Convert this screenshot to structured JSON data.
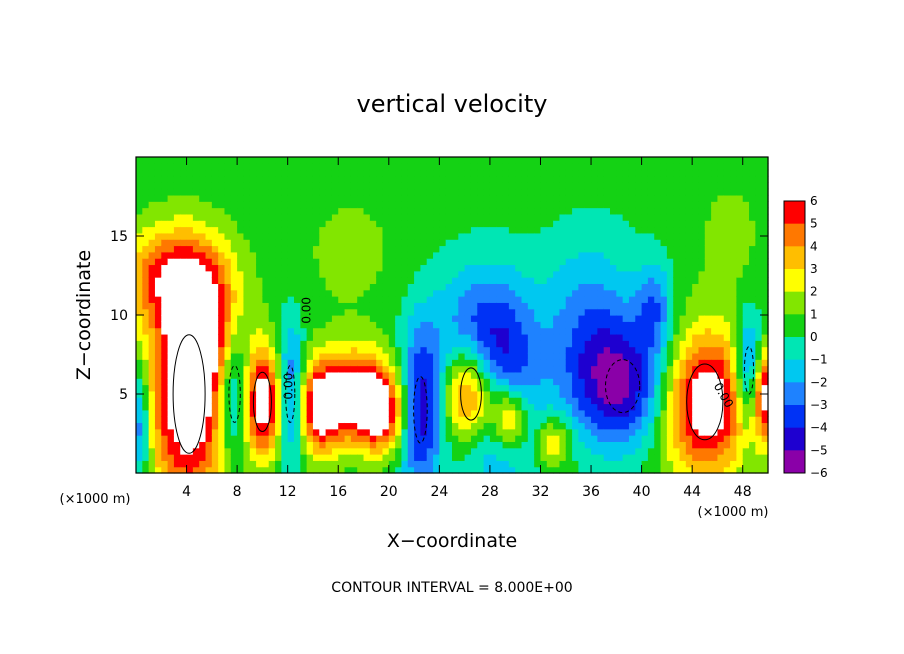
{
  "chart_data": {
    "type": "heatmap",
    "title": "vertical velocity",
    "xlabel": "X−coordinate",
    "ylabel": "Z−coordinate",
    "x_unit_left": "(×1000 m)",
    "x_unit_right": "(×1000 m)",
    "xlim": [
      0,
      50
    ],
    "ylim": [
      0,
      20
    ],
    "xticks": [
      4,
      8,
      12,
      16,
      20,
      24,
      28,
      32,
      36,
      40,
      44,
      48
    ],
    "yticks": [
      5,
      10,
      15
    ],
    "footer": "CONTOUR INTERVAL = 8.000E+00",
    "contour_labels": [
      "0.00",
      "0.00",
      "0.00"
    ],
    "colorbar": {
      "ticks": [
        6,
        5,
        4,
        3,
        2,
        1,
        0,
        -1,
        -2,
        -3,
        -4,
        -5,
        -6
      ],
      "tick_labels": [
        "6",
        "5",
        "4",
        "3",
        "2",
        "1",
        "0",
        "−1",
        "−2",
        "−3",
        "−4",
        "−5",
        "−6"
      ],
      "range": [
        -6,
        6
      ]
    },
    "features": [
      {
        "x": 4.2,
        "z": 5.0,
        "w": 7.5,
        "sx": 2.3,
        "sz": 5.0
      },
      {
        "x": 3.0,
        "z": 12.5,
        "w": 4.5,
        "sx": 3.0,
        "sz": 2.2
      },
      {
        "x": 5.5,
        "z": 9.0,
        "w": 3.5,
        "sx": 1.8,
        "sz": 2.5
      },
      {
        "x": 7.8,
        "z": 5.0,
        "w": -5.0,
        "sx": 1.0,
        "sz": 3.0
      },
      {
        "x": 10.0,
        "z": 4.5,
        "w": 7.0,
        "sx": 1.3,
        "sz": 2.5
      },
      {
        "x": 12.2,
        "z": 5.0,
        "w": -5.0,
        "sx": 0.8,
        "sz": 3.0
      },
      {
        "x": 14.5,
        "z": 4.0,
        "w": 5.5,
        "sx": 1.2,
        "sz": 2.0
      },
      {
        "x": 17.5,
        "z": 5.0,
        "w": 6.5,
        "sx": 2.3,
        "sz": 2.0
      },
      {
        "x": 19.5,
        "z": 3.5,
        "w": 4.0,
        "sx": 1.5,
        "sz": 1.7
      },
      {
        "x": 22.5,
        "z": 4.0,
        "w": -5.5,
        "sx": 1.2,
        "sz": 3.5
      },
      {
        "x": 26.5,
        "z": 5.0,
        "w": 7.0,
        "sx": 1.5,
        "sz": 2.2
      },
      {
        "x": 28.5,
        "z": 4.5,
        "w": -4.0,
        "sx": 2.2,
        "sz": 4.0
      },
      {
        "x": 29.5,
        "z": 3.5,
        "w": 5.5,
        "sx": 1.0,
        "sz": 1.5
      },
      {
        "x": 27.5,
        "z": 9.0,
        "w": -3.0,
        "sx": 3.0,
        "sz": 3.0
      },
      {
        "x": 33.0,
        "z": 2.0,
        "w": 3.0,
        "sx": 1.0,
        "sz": 1.2
      },
      {
        "x": 38.5,
        "z": 5.5,
        "w": -5.5,
        "sx": 3.0,
        "sz": 2.8
      },
      {
        "x": 36.0,
        "z": 10.0,
        "w": -2.5,
        "sx": 2.5,
        "sz": 3.5
      },
      {
        "x": 41.0,
        "z": 10.5,
        "w": -3.0,
        "sx": 1.0,
        "sz": 2.0
      },
      {
        "x": 45.0,
        "z": 4.5,
        "w": 7.5,
        "sx": 2.6,
        "sz": 3.2
      },
      {
        "x": 48.5,
        "z": 6.5,
        "w": -5.0,
        "sx": 0.8,
        "sz": 2.5
      },
      {
        "x": 49.8,
        "z": 5.0,
        "w": 6.0,
        "sx": 0.7,
        "sz": 2.0
      },
      {
        "x": 0.3,
        "z": 3.0,
        "w": -4.0,
        "sx": 0.6,
        "sz": 2.5
      },
      {
        "x": 17.0,
        "z": 14.0,
        "w": 1.0,
        "sx": 3.0,
        "sz": 3.0
      },
      {
        "x": 47.0,
        "z": 15.0,
        "w": 1.0,
        "sx": 2.0,
        "sz": 3.0
      }
    ]
  }
}
